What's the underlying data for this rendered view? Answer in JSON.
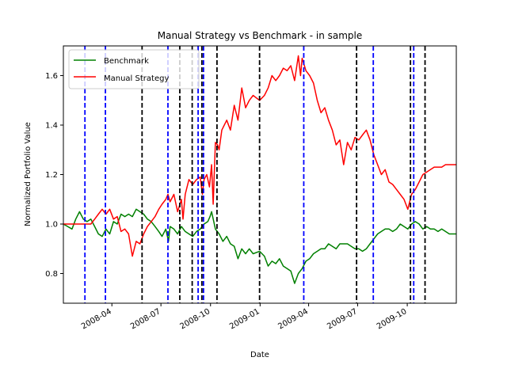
{
  "chart_data": {
    "type": "line",
    "title": "Manual Strategy vs Benchmark - in sample",
    "xlabel": "Date",
    "ylabel": "Normalized Portfolio Value",
    "xlim": [
      "2008-01-02",
      "2009-12-31"
    ],
    "ylim": [
      0.68,
      1.72
    ],
    "grid": false,
    "legend_position": "top-left",
    "x_ticks": [
      "2008-04-01",
      "2008-07-01",
      "2008-10-01",
      "2009-01-01",
      "2009-04-01",
      "2009-07-01",
      "2009-10-01"
    ],
    "x_tick_labels": [
      "2008-04",
      "2008-07",
      "2008-10",
      "2009-01",
      "2009-04",
      "2009-07",
      "2009-10"
    ],
    "y_ticks": [
      0.8,
      1.0,
      1.2,
      1.4,
      1.6
    ],
    "y_tick_labels": [
      "0.8",
      "1.0",
      "1.2",
      "1.4",
      "1.6"
    ],
    "series": [
      {
        "name": "Benchmark",
        "color": "#008000",
        "points": [
          [
            "2008-01-02",
            1.0
          ],
          [
            "2008-01-10",
            0.99
          ],
          [
            "2008-01-18",
            0.98
          ],
          [
            "2008-01-25",
            1.02
          ],
          [
            "2008-02-01",
            1.05
          ],
          [
            "2008-02-08",
            1.02
          ],
          [
            "2008-02-15",
            1.01
          ],
          [
            "2008-02-22",
            1.02
          ],
          [
            "2008-02-29",
            0.99
          ],
          [
            "2008-03-07",
            0.96
          ],
          [
            "2008-03-14",
            0.95
          ],
          [
            "2008-03-21",
            0.98
          ],
          [
            "2008-03-28",
            0.96
          ],
          [
            "2008-04-04",
            1.01
          ],
          [
            "2008-04-11",
            1.0
          ],
          [
            "2008-04-18",
            1.04
          ],
          [
            "2008-04-25",
            1.03
          ],
          [
            "2008-05-02",
            1.04
          ],
          [
            "2008-05-09",
            1.03
          ],
          [
            "2008-05-16",
            1.06
          ],
          [
            "2008-05-23",
            1.05
          ],
          [
            "2008-05-30",
            1.04
          ],
          [
            "2008-06-06",
            1.02
          ],
          [
            "2008-06-13",
            1.01
          ],
          [
            "2008-06-20",
            0.99
          ],
          [
            "2008-06-27",
            0.97
          ],
          [
            "2008-07-03",
            0.95
          ],
          [
            "2008-07-10",
            0.98
          ],
          [
            "2008-07-15",
            0.93
          ],
          [
            "2008-07-18",
            0.99
          ],
          [
            "2008-07-25",
            0.98
          ],
          [
            "2008-08-01",
            0.96
          ],
          [
            "2008-08-08",
            0.99
          ],
          [
            "2008-08-15",
            0.97
          ],
          [
            "2008-08-22",
            0.96
          ],
          [
            "2008-08-29",
            0.95
          ],
          [
            "2008-09-05",
            0.97
          ],
          [
            "2008-09-12",
            0.98
          ],
          [
            "2008-09-19",
            1.0
          ],
          [
            "2008-09-26",
            1.01
          ],
          [
            "2008-09-30",
            1.03
          ],
          [
            "2008-10-03",
            1.05
          ],
          [
            "2008-10-10",
            0.98
          ],
          [
            "2008-10-17",
            0.96
          ],
          [
            "2008-10-24",
            0.93
          ],
          [
            "2008-10-31",
            0.95
          ],
          [
            "2008-11-07",
            0.92
          ],
          [
            "2008-11-14",
            0.91
          ],
          [
            "2008-11-21",
            0.86
          ],
          [
            "2008-11-28",
            0.9
          ],
          [
            "2008-12-05",
            0.88
          ],
          [
            "2008-12-12",
            0.9
          ],
          [
            "2008-12-19",
            0.88
          ],
          [
            "2008-12-31",
            0.89
          ],
          [
            "2009-01-09",
            0.87
          ],
          [
            "2009-01-16",
            0.83
          ],
          [
            "2009-01-23",
            0.85
          ],
          [
            "2009-01-30",
            0.84
          ],
          [
            "2009-02-06",
            0.86
          ],
          [
            "2009-02-13",
            0.83
          ],
          [
            "2009-02-20",
            0.82
          ],
          [
            "2009-02-27",
            0.81
          ],
          [
            "2009-03-06",
            0.76
          ],
          [
            "2009-03-13",
            0.8
          ],
          [
            "2009-03-20",
            0.82
          ],
          [
            "2009-03-27",
            0.85
          ],
          [
            "2009-04-03",
            0.86
          ],
          [
            "2009-04-10",
            0.88
          ],
          [
            "2009-04-17",
            0.89
          ],
          [
            "2009-04-24",
            0.9
          ],
          [
            "2009-05-01",
            0.9
          ],
          [
            "2009-05-08",
            0.92
          ],
          [
            "2009-05-15",
            0.91
          ],
          [
            "2009-05-22",
            0.9
          ],
          [
            "2009-05-29",
            0.92
          ],
          [
            "2009-06-05",
            0.92
          ],
          [
            "2009-06-12",
            0.92
          ],
          [
            "2009-06-19",
            0.91
          ],
          [
            "2009-06-26",
            0.9
          ],
          [
            "2009-07-03",
            0.9
          ],
          [
            "2009-07-10",
            0.89
          ],
          [
            "2009-07-17",
            0.9
          ],
          [
            "2009-07-24",
            0.92
          ],
          [
            "2009-07-31",
            0.94
          ],
          [
            "2009-08-07",
            0.96
          ],
          [
            "2009-08-14",
            0.97
          ],
          [
            "2009-08-21",
            0.98
          ],
          [
            "2009-08-28",
            0.98
          ],
          [
            "2009-09-04",
            0.97
          ],
          [
            "2009-09-11",
            0.98
          ],
          [
            "2009-09-18",
            1.0
          ],
          [
            "2009-09-25",
            0.99
          ],
          [
            "2009-10-02",
            0.98
          ],
          [
            "2009-10-09",
            1.0
          ],
          [
            "2009-10-16",
            1.01
          ],
          [
            "2009-10-23",
            1.0
          ],
          [
            "2009-10-30",
            0.98
          ],
          [
            "2009-11-06",
            0.99
          ],
          [
            "2009-11-13",
            0.98
          ],
          [
            "2009-11-20",
            0.98
          ],
          [
            "2009-11-27",
            0.97
          ],
          [
            "2009-12-04",
            0.98
          ],
          [
            "2009-12-11",
            0.97
          ],
          [
            "2009-12-18",
            0.96
          ],
          [
            "2009-12-31",
            0.96
          ]
        ]
      },
      {
        "name": "Manual Strategy",
        "color": "#ff0000",
        "points": [
          [
            "2008-01-02",
            1.0
          ],
          [
            "2008-01-18",
            1.0
          ],
          [
            "2008-02-01",
            1.0
          ],
          [
            "2008-02-15",
            1.0
          ],
          [
            "2008-02-22",
            1.0
          ],
          [
            "2008-02-29",
            1.02
          ],
          [
            "2008-03-07",
            1.04
          ],
          [
            "2008-03-14",
            1.06
          ],
          [
            "2008-03-21",
            1.04
          ],
          [
            "2008-03-28",
            1.06
          ],
          [
            "2008-04-04",
            1.02
          ],
          [
            "2008-04-11",
            1.03
          ],
          [
            "2008-04-18",
            0.97
          ],
          [
            "2008-04-25",
            0.98
          ],
          [
            "2008-05-02",
            0.96
          ],
          [
            "2008-05-09",
            0.87
          ],
          [
            "2008-05-16",
            0.93
          ],
          [
            "2008-05-23",
            0.92
          ],
          [
            "2008-05-30",
            0.96
          ],
          [
            "2008-06-06",
            0.99
          ],
          [
            "2008-06-13",
            1.01
          ],
          [
            "2008-06-20",
            1.03
          ],
          [
            "2008-06-27",
            1.06
          ],
          [
            "2008-07-03",
            1.08
          ],
          [
            "2008-07-10",
            1.1
          ],
          [
            "2008-07-14",
            1.12
          ],
          [
            "2008-07-18",
            1.09
          ],
          [
            "2008-07-25",
            1.12
          ],
          [
            "2008-08-01",
            1.05
          ],
          [
            "2008-08-08",
            1.1
          ],
          [
            "2008-08-11",
            1.02
          ],
          [
            "2008-08-15",
            1.12
          ],
          [
            "2008-08-22",
            1.18
          ],
          [
            "2008-08-29",
            1.16
          ],
          [
            "2008-09-05",
            1.18
          ],
          [
            "2008-09-12",
            1.19
          ],
          [
            "2008-09-16",
            1.12
          ],
          [
            "2008-09-19",
            1.18
          ],
          [
            "2008-09-24",
            1.2
          ],
          [
            "2008-09-29",
            1.15
          ],
          [
            "2008-10-03",
            1.24
          ],
          [
            "2008-10-06",
            1.08
          ],
          [
            "2008-10-10",
            1.33
          ],
          [
            "2008-10-14",
            1.32
          ],
          [
            "2008-10-17",
            1.3
          ],
          [
            "2008-10-22",
            1.38
          ],
          [
            "2008-10-31",
            1.42
          ],
          [
            "2008-11-07",
            1.38
          ],
          [
            "2008-11-14",
            1.48
          ],
          [
            "2008-11-21",
            1.42
          ],
          [
            "2008-11-28",
            1.55
          ],
          [
            "2008-12-05",
            1.47
          ],
          [
            "2008-12-12",
            1.5
          ],
          [
            "2008-12-19",
            1.52
          ],
          [
            "2008-12-31",
            1.5
          ],
          [
            "2009-01-09",
            1.52
          ],
          [
            "2009-01-16",
            1.55
          ],
          [
            "2009-01-23",
            1.6
          ],
          [
            "2009-01-30",
            1.58
          ],
          [
            "2009-02-06",
            1.6
          ],
          [
            "2009-02-13",
            1.63
          ],
          [
            "2009-02-20",
            1.62
          ],
          [
            "2009-02-27",
            1.64
          ],
          [
            "2009-03-06",
            1.58
          ],
          [
            "2009-03-13",
            1.68
          ],
          [
            "2009-03-17",
            1.6
          ],
          [
            "2009-03-20",
            1.67
          ],
          [
            "2009-03-27",
            1.62
          ],
          [
            "2009-04-03",
            1.6
          ],
          [
            "2009-04-10",
            1.57
          ],
          [
            "2009-04-17",
            1.5
          ],
          [
            "2009-04-24",
            1.45
          ],
          [
            "2009-05-01",
            1.47
          ],
          [
            "2009-05-08",
            1.42
          ],
          [
            "2009-05-15",
            1.38
          ],
          [
            "2009-05-22",
            1.32
          ],
          [
            "2009-05-29",
            1.34
          ],
          [
            "2009-06-05",
            1.24
          ],
          [
            "2009-06-12",
            1.33
          ],
          [
            "2009-06-19",
            1.3
          ],
          [
            "2009-06-26",
            1.35
          ],
          [
            "2009-07-03",
            1.34
          ],
          [
            "2009-07-10",
            1.36
          ],
          [
            "2009-07-17",
            1.38
          ],
          [
            "2009-07-24",
            1.34
          ],
          [
            "2009-07-31",
            1.28
          ],
          [
            "2009-08-07",
            1.24
          ],
          [
            "2009-08-14",
            1.2
          ],
          [
            "2009-08-21",
            1.22
          ],
          [
            "2009-08-28",
            1.17
          ],
          [
            "2009-09-04",
            1.16
          ],
          [
            "2009-09-11",
            1.14
          ],
          [
            "2009-09-18",
            1.12
          ],
          [
            "2009-09-25",
            1.1
          ],
          [
            "2009-10-02",
            1.06
          ],
          [
            "2009-10-09",
            1.12
          ],
          [
            "2009-10-16",
            1.14
          ],
          [
            "2009-10-23",
            1.17
          ],
          [
            "2009-10-30",
            1.2
          ],
          [
            "2009-11-06",
            1.21
          ],
          [
            "2009-11-13",
            1.22
          ],
          [
            "2009-11-20",
            1.23
          ],
          [
            "2009-11-27",
            1.23
          ],
          [
            "2009-12-04",
            1.23
          ],
          [
            "2009-12-11",
            1.24
          ],
          [
            "2009-12-18",
            1.24
          ],
          [
            "2009-12-31",
            1.24
          ]
        ]
      }
    ],
    "vertical_lines": [
      {
        "date": "2008-02-11",
        "color": "#0000ff"
      },
      {
        "date": "2008-03-20",
        "color": "#0000ff"
      },
      {
        "date": "2008-05-27",
        "color": "#000000"
      },
      {
        "date": "2008-07-14",
        "color": "#0000ff"
      },
      {
        "date": "2008-08-05",
        "color": "#000000"
      },
      {
        "date": "2008-08-28",
        "color": "#000000"
      },
      {
        "date": "2008-09-08",
        "color": "#0000ff"
      },
      {
        "date": "2008-09-15",
        "color": "#000000"
      },
      {
        "date": "2008-09-18",
        "color": "#0000ff"
      },
      {
        "date": "2008-10-13",
        "color": "#000000"
      },
      {
        "date": "2008-12-31",
        "color": "#000000"
      },
      {
        "date": "2009-03-23",
        "color": "#0000ff"
      },
      {
        "date": "2009-06-29",
        "color": "#000000"
      },
      {
        "date": "2009-07-30",
        "color": "#0000ff"
      },
      {
        "date": "2009-10-07",
        "color": "#000000"
      },
      {
        "date": "2009-10-13",
        "color": "#0000ff"
      },
      {
        "date": "2009-11-03",
        "color": "#000000"
      }
    ]
  }
}
